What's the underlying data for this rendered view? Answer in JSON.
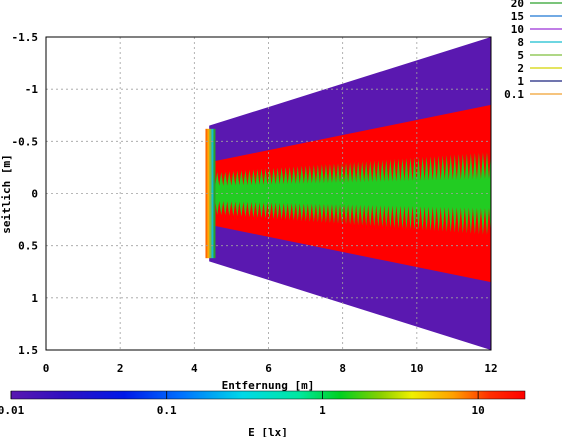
{
  "chart_data": {
    "type": "heatmap",
    "xlabel": "Entfernung [m]",
    "ylabel": "seitlich [m]",
    "xlim": [
      0,
      12
    ],
    "ylim": [
      1.5,
      -1.5
    ],
    "xticks": [
      "0",
      "2",
      "4",
      "6",
      "8",
      "10",
      "12"
    ],
    "yticks": [
      "-1.5",
      "-1",
      "-0.5",
      "0",
      "0.5",
      "1",
      "1.5"
    ],
    "grid": true,
    "legend_position": "top-right",
    "contour_levels": [
      {
        "label": "20",
        "value": 20,
        "color": "#2ca02c"
      },
      {
        "label": "15",
        "value": 15,
        "color": "#1f77d4"
      },
      {
        "label": "10",
        "value": 10,
        "color": "#9b30d8"
      },
      {
        "label": "8",
        "value": 8,
        "color": "#17becf"
      },
      {
        "label": "5",
        "value": 5,
        "color": "#7fbf3f"
      },
      {
        "label": "2",
        "value": 2,
        "color": "#d4d400"
      },
      {
        "label": "1",
        "value": 1,
        "color": "#1a237e"
      },
      {
        "label": "0.1",
        "value": 0.1,
        "color": "#f0a030"
      }
    ],
    "colorbar": {
      "label": "E [lx]",
      "scale": "log",
      "range": [
        0.01,
        20
      ],
      "ticks": [
        "0.01",
        "0.1",
        "1",
        "10"
      ]
    },
    "regions": [
      {
        "name": "outer",
        "value_lx": 0.02,
        "color": "#5a18b0",
        "x_start": 4.4,
        "half_width_start": 0.65,
        "x_end": 12,
        "half_width_end": 1.5
      },
      {
        "name": "middle",
        "value_lx": 15,
        "color": "#ff0000",
        "x_start": 4.4,
        "half_width_start": 0.3,
        "x_end": 12,
        "half_width_end": 0.85
      },
      {
        "name": "core",
        "value_lx": 3,
        "color": "#22cc22",
        "x_start": 4.4,
        "half_width_start": 0.2,
        "x_end": 12,
        "half_width_end": 0.4
      }
    ],
    "source_edge": {
      "x": 4.3,
      "half_width": 0.62,
      "colors": [
        "#ff6a00",
        "#ffaa00",
        "#7fbf3f",
        "#17becf",
        "#2ca02c"
      ]
    }
  }
}
